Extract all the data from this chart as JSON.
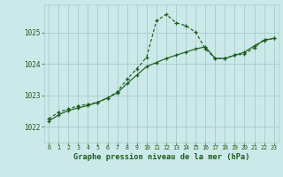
{
  "title": "Graphe pression niveau de la mer (hPa)",
  "background_color": "#cce9e9",
  "plot_bg_color": "#cce9e9",
  "line_color": "#1a5c1a",
  "marker_color": "#1a5c1a",
  "grid_color": "#aacfcf",
  "xlim": [
    -0.5,
    23.5
  ],
  "ylim": [
    1021.5,
    1025.9
  ],
  "yticks": [
    1022,
    1023,
    1024,
    1025
  ],
  "xticks": [
    0,
    1,
    2,
    3,
    4,
    5,
    6,
    7,
    8,
    9,
    10,
    11,
    12,
    13,
    14,
    15,
    16,
    17,
    18,
    19,
    20,
    21,
    22,
    23
  ],
  "series1_x": [
    0,
    1,
    2,
    3,
    4,
    5,
    6,
    7,
    8,
    9,
    10,
    11,
    12,
    13,
    14,
    15,
    16,
    17,
    18,
    19,
    20,
    21,
    22,
    23
  ],
  "series1_y": [
    1022.25,
    1022.47,
    1022.57,
    1022.67,
    1022.72,
    1022.78,
    1022.92,
    1023.12,
    1023.52,
    1023.85,
    1024.22,
    1025.38,
    1025.58,
    1025.32,
    1025.22,
    1025.02,
    1024.48,
    1024.18,
    1024.18,
    1024.28,
    1024.32,
    1024.52,
    1024.78,
    1024.82
  ],
  "series2_x": [
    0,
    1,
    2,
    3,
    4,
    5,
    6,
    7,
    8,
    9,
    10,
    11,
    12,
    13,
    14,
    15,
    16,
    17,
    18,
    19,
    20,
    21,
    22,
    23
  ],
  "series2_y": [
    1022.18,
    1022.38,
    1022.52,
    1022.6,
    1022.68,
    1022.78,
    1022.92,
    1023.08,
    1023.38,
    1023.65,
    1023.92,
    1024.05,
    1024.18,
    1024.28,
    1024.38,
    1024.48,
    1024.55,
    1024.18,
    1024.18,
    1024.28,
    1024.38,
    1024.58,
    1024.75,
    1024.82
  ]
}
